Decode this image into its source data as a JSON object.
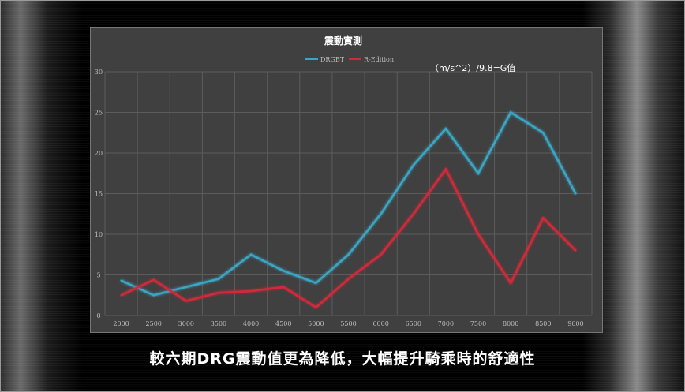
{
  "caption": "較六期DRG震動值更為降低，大幅提升騎乘時的舒適性",
  "chart_data": {
    "type": "line",
    "title": "震動實測",
    "annotation": "（m/s^2）/9.8=G值",
    "xlabel": "",
    "ylabel": "",
    "x": [
      2000,
      2500,
      3000,
      3500,
      4000,
      4500,
      5000,
      5500,
      6000,
      6500,
      7000,
      7500,
      8000,
      8500,
      9000
    ],
    "yticks": [
      0,
      5,
      10,
      15,
      20,
      25,
      30
    ],
    "ylim": [
      0,
      30
    ],
    "grid": true,
    "legend": "top-center",
    "series": [
      {
        "name": "DRGBT",
        "color": "#3aa6c4",
        "values": [
          4.3,
          2.5,
          3.5,
          4.5,
          7.5,
          5.5,
          4.0,
          7.5,
          12.5,
          18.5,
          23.0,
          17.5,
          25.0,
          22.5,
          15.0
        ]
      },
      {
        "name": "R-Edition",
        "color": "#d12a3a",
        "values": [
          2.5,
          4.4,
          1.8,
          2.8,
          3.0,
          3.5,
          1.0,
          4.5,
          7.5,
          12.5,
          18.0,
          10.0,
          4.0,
          12.0,
          8.0
        ]
      }
    ]
  }
}
